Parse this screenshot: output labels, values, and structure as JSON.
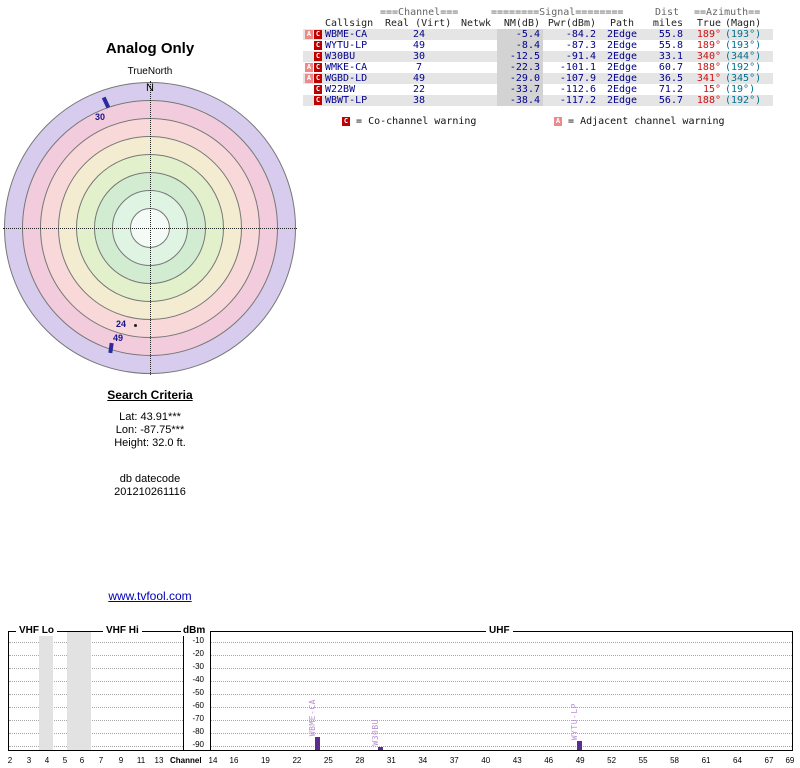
{
  "radar": {
    "title": "Analog Only",
    "true_north_label": "TrueNorth",
    "north_label": "N",
    "ring_colors": [
      "#d8ccee",
      "#f2ccdd",
      "#f8d8d8",
      "#f4ecd0",
      "#e2f0cc",
      "#d2ecd2",
      "#e0f4e4",
      "#f4fbf7"
    ],
    "markers": [
      {
        "label": "30",
        "azimuth_deg": 340
      },
      {
        "label": "24",
        "azimuth_deg": 189
      },
      {
        "label": "49",
        "azimuth_deg": 189
      }
    ]
  },
  "table": {
    "group_headers": {
      "channel": "===Channel===",
      "signal": "========Signal========",
      "dist": "Dist",
      "azimuth": "==Azimuth=="
    },
    "columns": {
      "callsign": "Callsign",
      "real": "Real (Virt)",
      "netwk": "Netwk",
      "nm": "NM(dB)",
      "pwr": "Pwr(dBm)",
      "path": "Path",
      "miles": "miles",
      "true_az": "True",
      "magn": "(Magn)"
    },
    "rows": [
      {
        "badges": [
          "A",
          "C"
        ],
        "callsign": "WBME-CA",
        "real": "24",
        "netwk": "",
        "nm": "-5.4",
        "pwr": "-84.2",
        "path": "2Edge",
        "miles": "55.8",
        "true_az": "189°",
        "magn": "(193°)"
      },
      {
        "badges": [
          "C"
        ],
        "callsign": "WYTU-LP",
        "real": "49",
        "netwk": "",
        "nm": "-8.4",
        "pwr": "-87.3",
        "path": "2Edge",
        "miles": "55.8",
        "true_az": "189°",
        "magn": "(193°)"
      },
      {
        "badges": [
          "C"
        ],
        "callsign": "W30BU",
        "real": "30",
        "netwk": "",
        "nm": "-12.5",
        "pwr": "-91.4",
        "path": "2Edge",
        "miles": "33.1",
        "true_az": "340°",
        "magn": "(344°)"
      },
      {
        "badges": [
          "A",
          "C"
        ],
        "callsign": "WMKE-CA",
        "real": "7",
        "netwk": "",
        "nm": "-22.3",
        "pwr": "-101.1",
        "path": "2Edge",
        "miles": "60.7",
        "true_az": "188°",
        "magn": "(192°)"
      },
      {
        "badges": [
          "A",
          "C"
        ],
        "callsign": "WGBD-LD",
        "real": "49",
        "netwk": "",
        "nm": "-29.0",
        "pwr": "-107.9",
        "path": "2Edge",
        "miles": "36.5",
        "true_az": "341°",
        "magn": "(345°)"
      },
      {
        "badges": [
          "C"
        ],
        "callsign": "W22BW",
        "real": "22",
        "netwk": "",
        "nm": "-33.7",
        "pwr": "-112.6",
        "path": "2Edge",
        "miles": "71.2",
        "true_az": "15°",
        "magn": "(19°)"
      },
      {
        "badges": [
          "C"
        ],
        "callsign": "WBWT-LP",
        "real": "38",
        "netwk": "",
        "nm": "-38.4",
        "pwr": "-117.2",
        "path": "2Edge",
        "miles": "56.7",
        "true_az": "188°",
        "magn": "(192°)"
      }
    ],
    "legend": [
      {
        "badge": "C",
        "text": "= Co-channel warning"
      },
      {
        "badge": "A",
        "text": "= Adjacent channel warning"
      }
    ],
    "colors": {
      "text": "#00008b",
      "true_az": "#cc1111",
      "magn": "#007090",
      "badge_c": "#c00000",
      "badge_a": "#ef8888"
    }
  },
  "search": {
    "heading": "Search Criteria",
    "lat": "Lat: 43.91***",
    "lon": "Lon: -87.75***",
    "height": "Height: 32.0 ft.",
    "datecode_label": "db datecode",
    "datecode": "201210261116"
  },
  "link": {
    "text": "www.tvfool.com"
  },
  "chart_data": {
    "type": "bar",
    "title": "RF signal spectrum",
    "ylabel": "dBm",
    "xlabel": "Channel",
    "ylim": [
      -95,
      -5
    ],
    "yticks": [
      -10,
      -20,
      -30,
      -40,
      -50,
      -60,
      -70,
      -80,
      -90
    ],
    "band_labels": [
      "VHF Lo",
      "VHF Hi",
      "UHF"
    ],
    "vhf_channels": [
      2,
      3,
      4,
      5,
      6,
      7,
      9,
      11,
      13
    ],
    "uhf_channels": [
      14,
      16,
      19,
      22,
      25,
      28,
      31,
      34,
      37,
      40,
      43,
      46,
      49,
      52,
      55,
      58,
      61,
      64,
      67,
      69
    ],
    "bars": [
      {
        "callsign": "WBME-CA",
        "channel": 24,
        "dbm": -84.2
      },
      {
        "callsign": "W30BU",
        "channel": 30,
        "dbm": -91.4
      },
      {
        "callsign": "WYTU-LP",
        "channel": 49,
        "dbm": -87.3
      }
    ],
    "bar_color": "#5c2d91",
    "bar_label_color": "#b88fd4",
    "grid": true,
    "legend_position": "none"
  }
}
